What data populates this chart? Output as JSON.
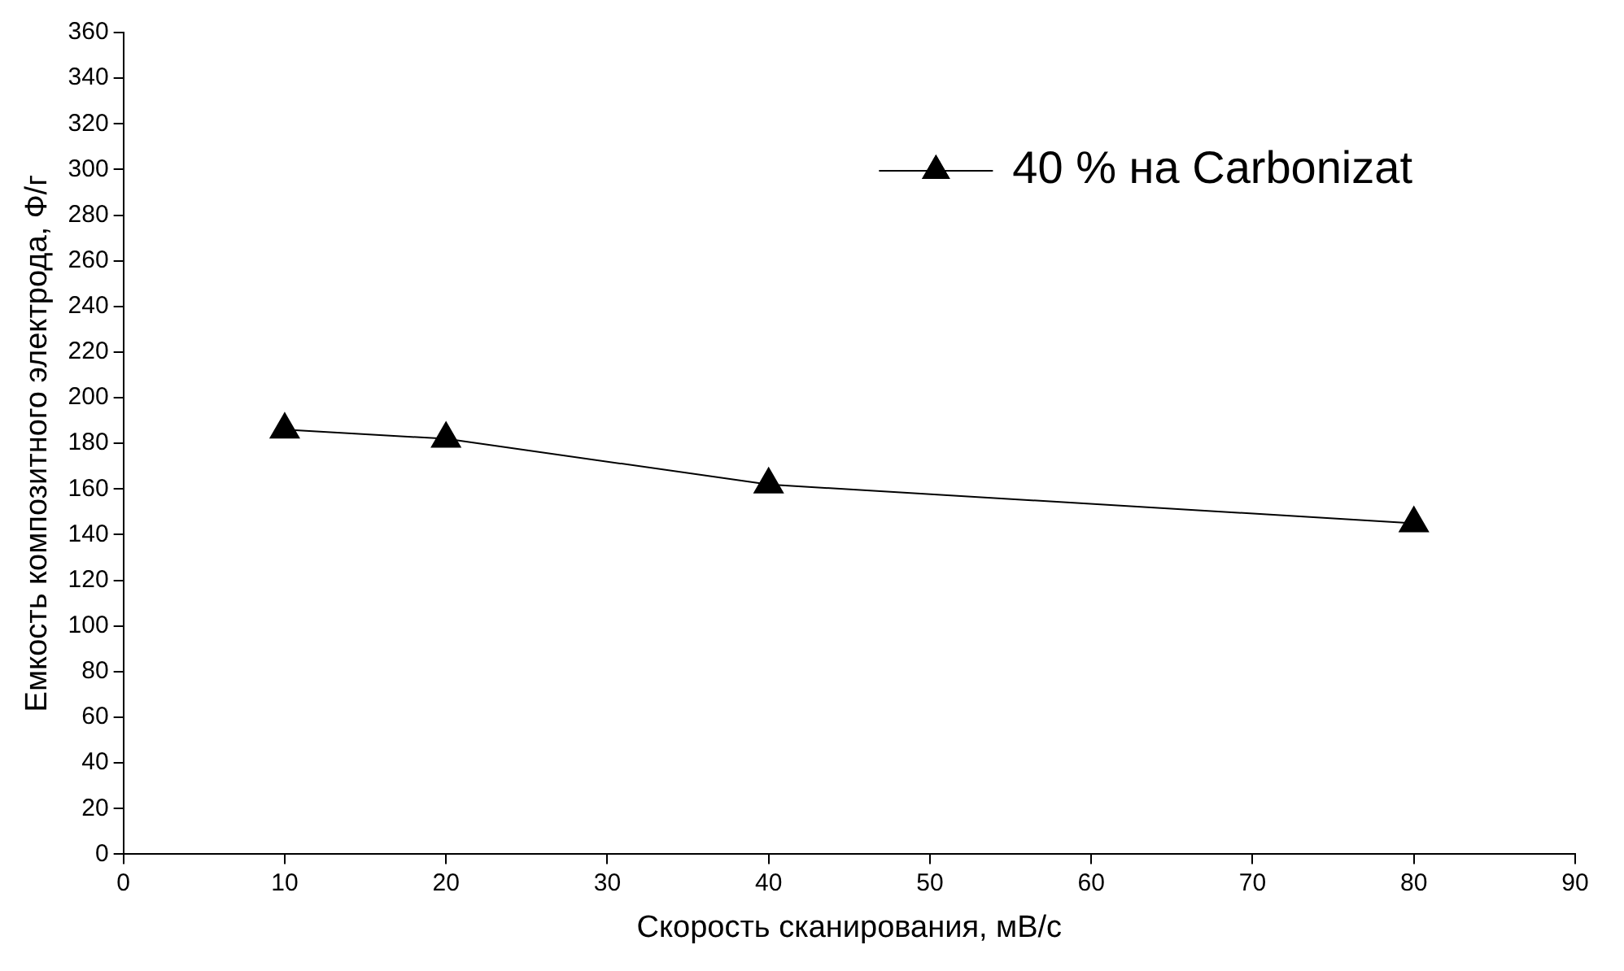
{
  "chart_data": {
    "type": "line",
    "xlabel": "Скорость сканирования, мВ/с",
    "ylabel": "Емкость композитного электрода, Ф/г",
    "x": [
      10,
      20,
      40,
      80
    ],
    "series": [
      {
        "name": "40 % на Carbonizat",
        "color": "#000000",
        "values": [
          186,
          182,
          162,
          145
        ]
      }
    ],
    "xlim": [
      0,
      90
    ],
    "xticks": [
      0,
      10,
      20,
      30,
      40,
      50,
      60,
      70,
      80,
      90
    ],
    "ylim": [
      0,
      360
    ],
    "yticks": [
      0,
      20,
      40,
      60,
      80,
      100,
      120,
      140,
      160,
      180,
      200,
      220,
      240,
      260,
      280,
      300,
      320,
      340,
      360
    ],
    "grid": false,
    "legend": "top right",
    "marker": "triangle",
    "line_style": "solid"
  }
}
